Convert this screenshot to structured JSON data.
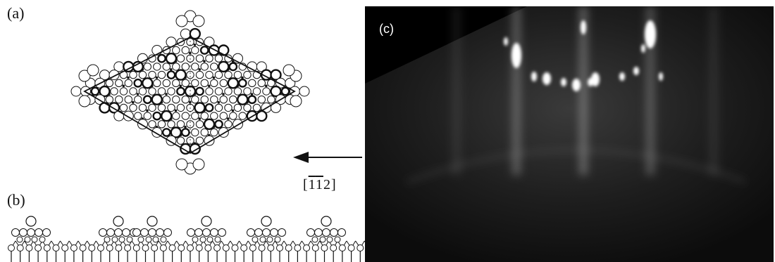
{
  "panels": {
    "a": {
      "label": "(a)"
    },
    "b": {
      "label": "(b)"
    },
    "c": {
      "label": "(c)"
    }
  },
  "direction": {
    "digit_1a": "1",
    "digit_1b": "1",
    "digit_2": "2",
    "open": "[",
    "close": "]"
  },
  "colors": {
    "ink": "#111111",
    "background": "#ffffff",
    "rheed_bg": "#111111",
    "spot": "#ffffff"
  }
}
